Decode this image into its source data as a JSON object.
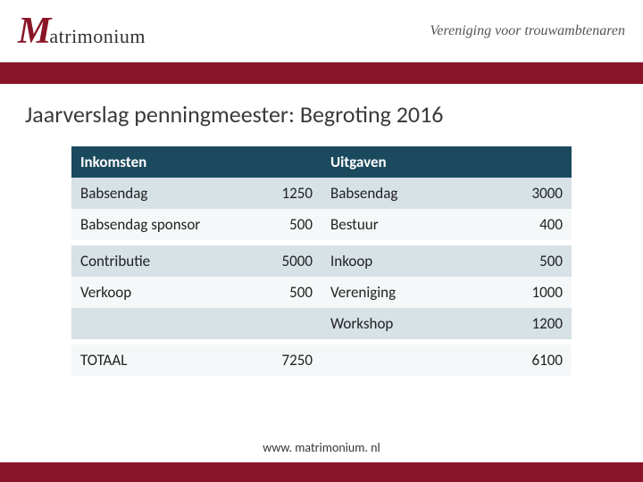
{
  "header": {
    "logo_initial": "M",
    "logo_rest": "atrimonium",
    "tagline": "Vereniging voor trouwambtenaren"
  },
  "title": "Jaarverslag penningmeester: Begroting 2016",
  "table": {
    "income_header": "Inkomsten",
    "expense_header": "Uitgaven",
    "rows": [
      {
        "income_label": "Babsendag",
        "income_value": "1250",
        "expense_label": "Babsendag",
        "expense_value": "3000"
      },
      {
        "income_label": "Babsendag sponsor",
        "income_value": "500",
        "expense_label": "Bestuur",
        "expense_value": "400"
      },
      {
        "income_label": "Contributie",
        "income_value": "5000",
        "expense_label": "Inkoop",
        "expense_value": "500"
      },
      {
        "income_label": "Verkoop",
        "income_value": "500",
        "expense_label": "Vereniging",
        "expense_value": "1000"
      },
      {
        "income_label": "",
        "income_value": "",
        "expense_label": "Workshop",
        "expense_value": "1200"
      }
    ],
    "total_label": "TOTAAL",
    "total_income": "7250",
    "total_expense": "6100"
  },
  "footer_url": "www. matrimonium. nl",
  "colors": {
    "brand_red": "#8a1528",
    "table_header": "#1b4a5e",
    "row_light": "#d7e2e7",
    "row_white": "#f5f8f9"
  }
}
